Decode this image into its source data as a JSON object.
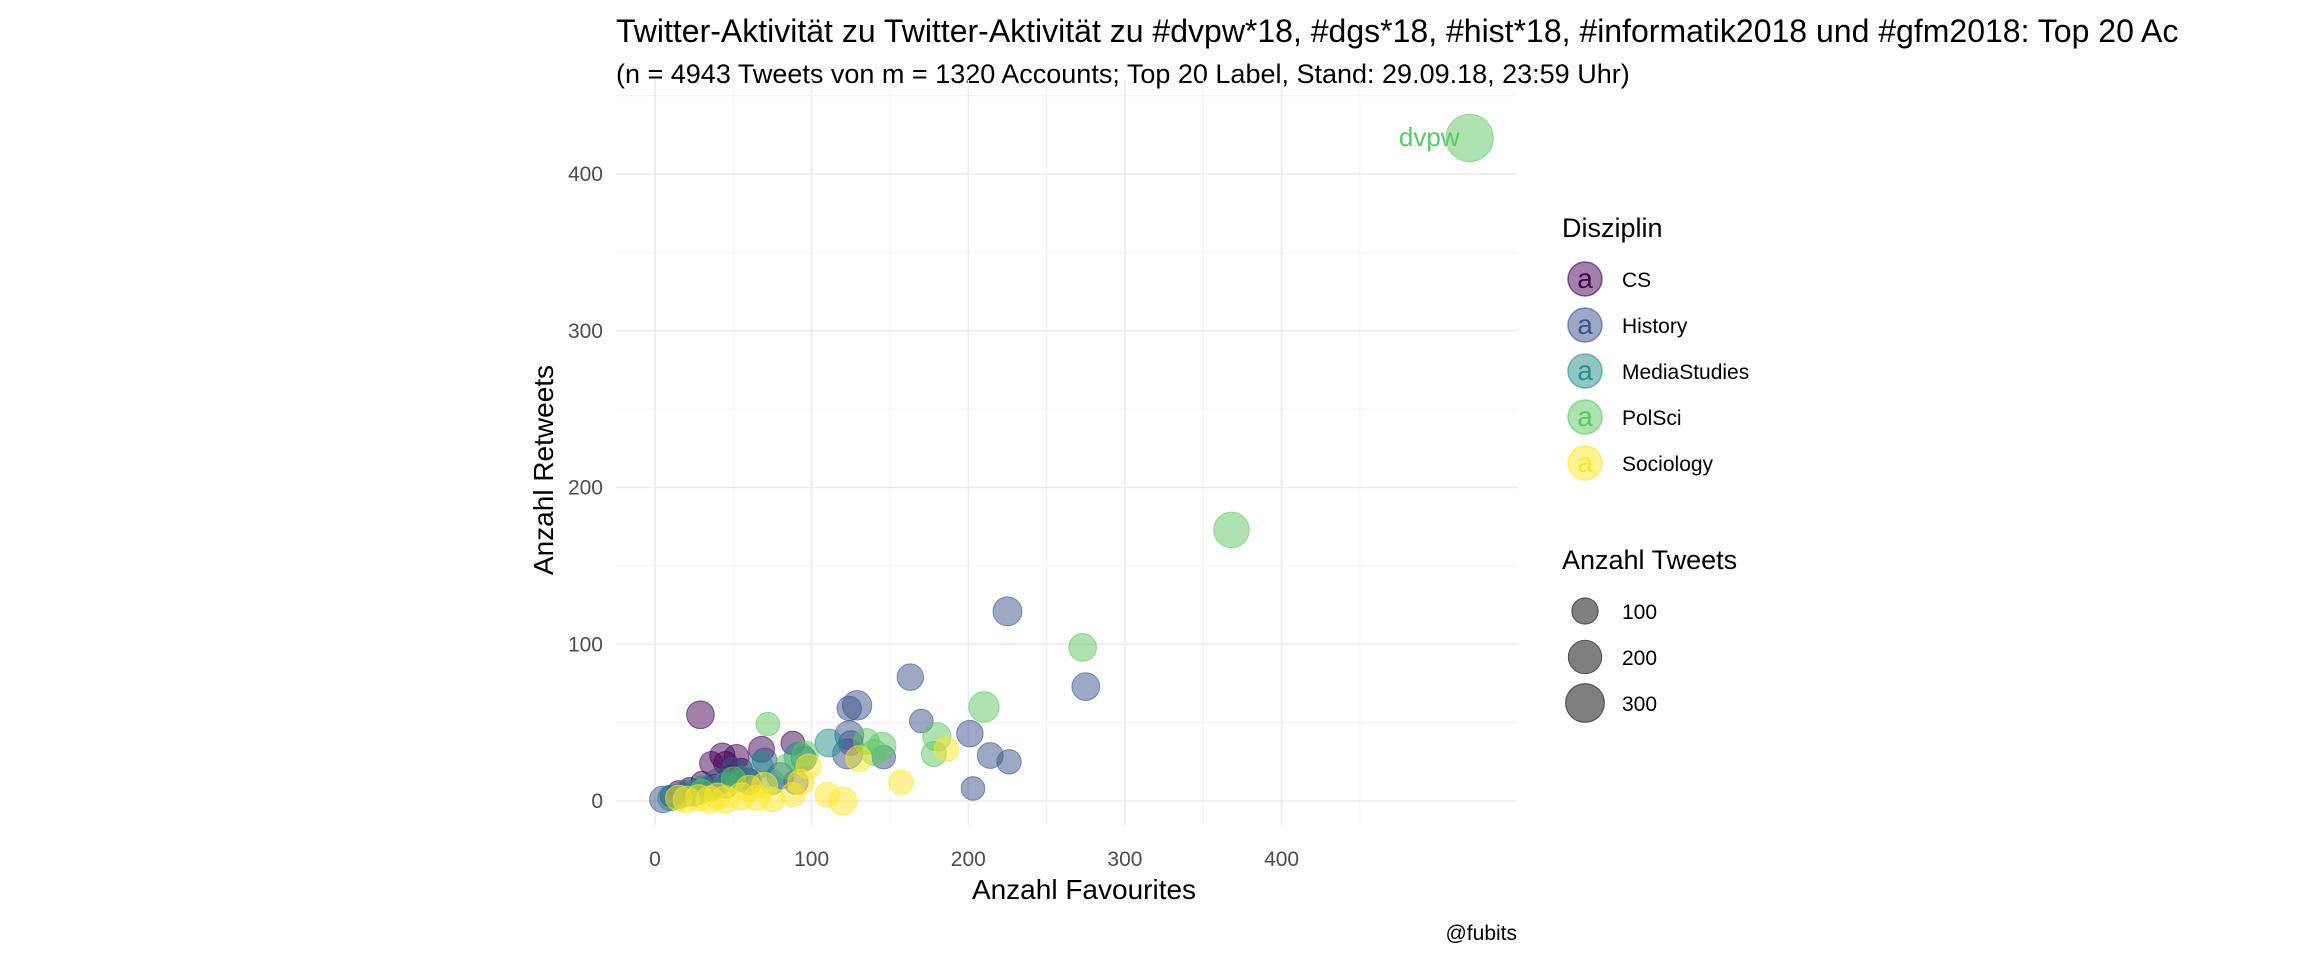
{
  "chart_data": {
    "type": "scatter",
    "title": "Twitter-Aktivität zu Twitter-Aktivität zu #dvpw*18, #dgs*18, #hist*18, #informatik2018 und #gfm2018: Top 20 Ac",
    "subtitle": "(n = 4943 Tweets von m = 1320 Accounts; Top 20 Label, Stand: 29.09.18, 23:59 Uhr)",
    "xlabel": "Anzahl Favourites",
    "ylabel": "Anzahl Retweets",
    "caption": "@fubits",
    "xlim": [
      -20,
      550
    ],
    "ylim": [
      -20,
      430
    ],
    "x_ticks": [
      0,
      100,
      200,
      300,
      400
    ],
    "y_ticks": [
      0,
      100,
      200,
      300,
      400
    ],
    "grid": true,
    "legend_position": "right",
    "color_legend": {
      "title": "Disziplin",
      "key_glyph": "a",
      "entries": [
        {
          "name": "CS",
          "color": "#440154"
        },
        {
          "name": "History",
          "color": "#3b528b"
        },
        {
          "name": "MediaStudies",
          "color": "#21908c"
        },
        {
          "name": "PolSci",
          "color": "#5dc863"
        },
        {
          "name": "Sociology",
          "color": "#fde725"
        }
      ]
    },
    "size_legend": {
      "title": "Anzahl Tweets",
      "entries": [
        {
          "label": "100",
          "value": 100
        },
        {
          "label": "200",
          "value": 200
        },
        {
          "label": "300",
          "value": 300
        }
      ]
    },
    "annotations": [
      {
        "text": "dvpw",
        "x": 520,
        "y": 423,
        "series": "PolSci"
      }
    ],
    "series": [
      {
        "name": "CS",
        "points": [
          {
            "x": 29,
            "y": 55,
            "n": 70
          },
          {
            "x": 43,
            "y": 29,
            "n": 50
          },
          {
            "x": 52,
            "y": 28,
            "n": 50
          },
          {
            "x": 36,
            "y": 24,
            "n": 40
          },
          {
            "x": 45,
            "y": 24,
            "n": 40
          },
          {
            "x": 68,
            "y": 33,
            "n": 55
          },
          {
            "x": 88,
            "y": 37,
            "n": 40
          },
          {
            "x": 38,
            "y": 10,
            "n": 30
          },
          {
            "x": 30,
            "y": 12,
            "n": 30
          },
          {
            "x": 48,
            "y": 16,
            "n": 30
          },
          {
            "x": 22,
            "y": 8,
            "n": 30
          },
          {
            "x": 15,
            "y": 6,
            "n": 30
          },
          {
            "x": 60,
            "y": 14,
            "n": 30
          },
          {
            "x": 55,
            "y": 20,
            "n": 35
          },
          {
            "x": 10,
            "y": 3,
            "n": 25
          }
        ]
      },
      {
        "name": "History",
        "points": [
          {
            "x": 225,
            "y": 121,
            "n": 80
          },
          {
            "x": 275,
            "y": 73,
            "n": 70
          },
          {
            "x": 163,
            "y": 79,
            "n": 60
          },
          {
            "x": 129,
            "y": 61,
            "n": 85
          },
          {
            "x": 124,
            "y": 59,
            "n": 45
          },
          {
            "x": 201,
            "y": 43,
            "n": 60
          },
          {
            "x": 124,
            "y": 42,
            "n": 80
          },
          {
            "x": 170,
            "y": 51,
            "n": 40
          },
          {
            "x": 125,
            "y": 37,
            "n": 45
          },
          {
            "x": 123,
            "y": 30,
            "n": 90
          },
          {
            "x": 214,
            "y": 29,
            "n": 55
          },
          {
            "x": 226,
            "y": 25,
            "n": 45
          },
          {
            "x": 146,
            "y": 28,
            "n": 40
          },
          {
            "x": 203,
            "y": 8,
            "n": 40
          },
          {
            "x": 95,
            "y": 27,
            "n": 50
          },
          {
            "x": 70,
            "y": 26,
            "n": 45
          },
          {
            "x": 80,
            "y": 16,
            "n": 60
          },
          {
            "x": 60,
            "y": 12,
            "n": 50
          },
          {
            "x": 40,
            "y": 12,
            "n": 60
          },
          {
            "x": 35,
            "y": 8,
            "n": 50
          },
          {
            "x": 25,
            "y": 5,
            "n": 50
          },
          {
            "x": 15,
            "y": 3,
            "n": 45
          },
          {
            "x": 5,
            "y": 1,
            "n": 60
          },
          {
            "x": 50,
            "y": 20,
            "n": 45
          },
          {
            "x": 90,
            "y": 12,
            "n": 45
          }
        ]
      },
      {
        "name": "MediaStudies",
        "points": [
          {
            "x": 111,
            "y": 37,
            "n": 70
          },
          {
            "x": 92,
            "y": 28,
            "n": 90
          },
          {
            "x": 67,
            "y": 23,
            "n": 50
          },
          {
            "x": 56,
            "y": 14,
            "n": 55
          },
          {
            "x": 45,
            "y": 10,
            "n": 55
          },
          {
            "x": 30,
            "y": 8,
            "n": 50
          },
          {
            "x": 20,
            "y": 5,
            "n": 55
          },
          {
            "x": 10,
            "y": 2,
            "n": 55
          },
          {
            "x": 75,
            "y": 12,
            "n": 45
          }
        ]
      },
      {
        "name": "PolSci",
        "points": [
          {
            "x": 520,
            "y": 423,
            "n": 330
          },
          {
            "x": 368,
            "y": 173,
            "n": 150
          },
          {
            "x": 273,
            "y": 98,
            "n": 70
          },
          {
            "x": 210,
            "y": 60,
            "n": 95
          },
          {
            "x": 180,
            "y": 41,
            "n": 75
          },
          {
            "x": 178,
            "y": 30,
            "n": 50
          },
          {
            "x": 145,
            "y": 35,
            "n": 70
          },
          {
            "x": 135,
            "y": 38,
            "n": 55
          },
          {
            "x": 72,
            "y": 49,
            "n": 40
          },
          {
            "x": 96,
            "y": 30,
            "n": 55
          },
          {
            "x": 140,
            "y": 31,
            "n": 55
          },
          {
            "x": 84,
            "y": 22,
            "n": 45
          },
          {
            "x": 50,
            "y": 14,
            "n": 45
          },
          {
            "x": 30,
            "y": 6,
            "n": 45
          }
        ]
      },
      {
        "name": "Sociology",
        "points": [
          {
            "x": 120,
            "y": 0,
            "n": 70
          },
          {
            "x": 110,
            "y": 4,
            "n": 45
          },
          {
            "x": 93,
            "y": 12,
            "n": 55
          },
          {
            "x": 88,
            "y": 4,
            "n": 45
          },
          {
            "x": 75,
            "y": 1,
            "n": 45
          },
          {
            "x": 65,
            "y": 2,
            "n": 50
          },
          {
            "x": 60,
            "y": 8,
            "n": 60
          },
          {
            "x": 55,
            "y": 3,
            "n": 65
          },
          {
            "x": 45,
            "y": 1,
            "n": 65
          },
          {
            "x": 40,
            "y": 3,
            "n": 60
          },
          {
            "x": 35,
            "y": 1,
            "n": 65
          },
          {
            "x": 28,
            "y": 2,
            "n": 60
          },
          {
            "x": 20,
            "y": 1,
            "n": 60
          },
          {
            "x": 15,
            "y": 2,
            "n": 55
          },
          {
            "x": 157,
            "y": 12,
            "n": 45
          },
          {
            "x": 186,
            "y": 33,
            "n": 45
          },
          {
            "x": 130,
            "y": 27,
            "n": 55
          },
          {
            "x": 98,
            "y": 22,
            "n": 50
          },
          {
            "x": 70,
            "y": 10,
            "n": 55
          }
        ]
      }
    ]
  }
}
